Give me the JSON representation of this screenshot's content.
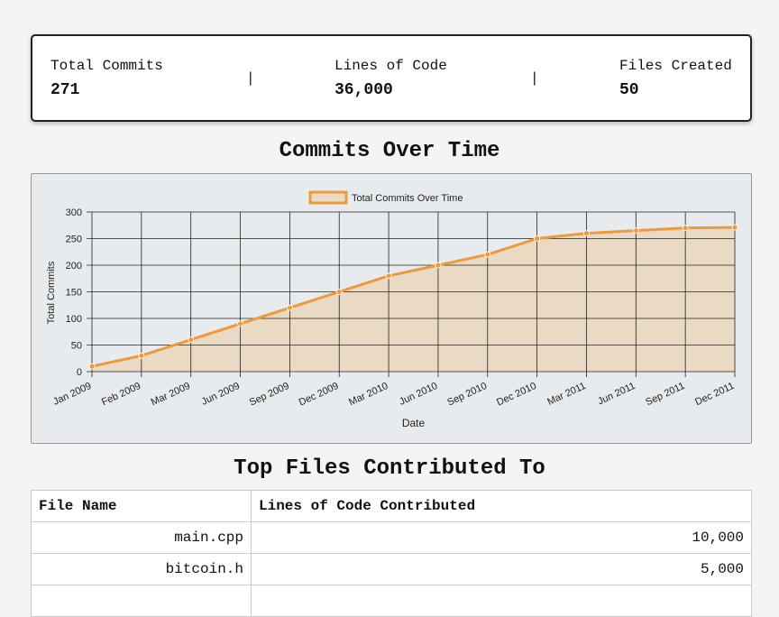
{
  "stats": {
    "commits_label": "Total Commits",
    "commits_value": "271",
    "loc_label": "Lines of Code",
    "loc_value": "36,000",
    "files_label": "Files Created",
    "files_value": "50",
    "separator": "|"
  },
  "chart_title": "Commits Over Time",
  "chart_data": {
    "type": "area",
    "x": [
      "Jan 2009",
      "Feb 2009",
      "Mar 2009",
      "Jun 2009",
      "Sep 2009",
      "Dec 2009",
      "Mar 2010",
      "Jun 2010",
      "Sep 2010",
      "Dec 2010",
      "Mar 2011",
      "Jun 2011",
      "Sep 2011",
      "Dec 2011"
    ],
    "series": [
      {
        "name": "Total Commits Over Time",
        "values": [
          10,
          30,
          60,
          90,
          120,
          150,
          180,
          200,
          220,
          250,
          260,
          265,
          270,
          271
        ]
      }
    ],
    "xlabel": "Date",
    "ylabel": "Total Commits",
    "ylim": [
      0,
      300
    ],
    "yticks": [
      0,
      50,
      100,
      150,
      200,
      250,
      300
    ],
    "grid": true,
    "legend": "top-center",
    "line_color": "#ee9a3a",
    "fill_color": "#ead9c3"
  },
  "files_title": "Top Files Contributed To",
  "files_table": {
    "headers": [
      "File Name",
      "Lines of Code Contributed"
    ],
    "rows": [
      {
        "file": "main.cpp",
        "loc": "10,000"
      },
      {
        "file": "bitcoin.h",
        "loc": "5,000"
      }
    ]
  }
}
